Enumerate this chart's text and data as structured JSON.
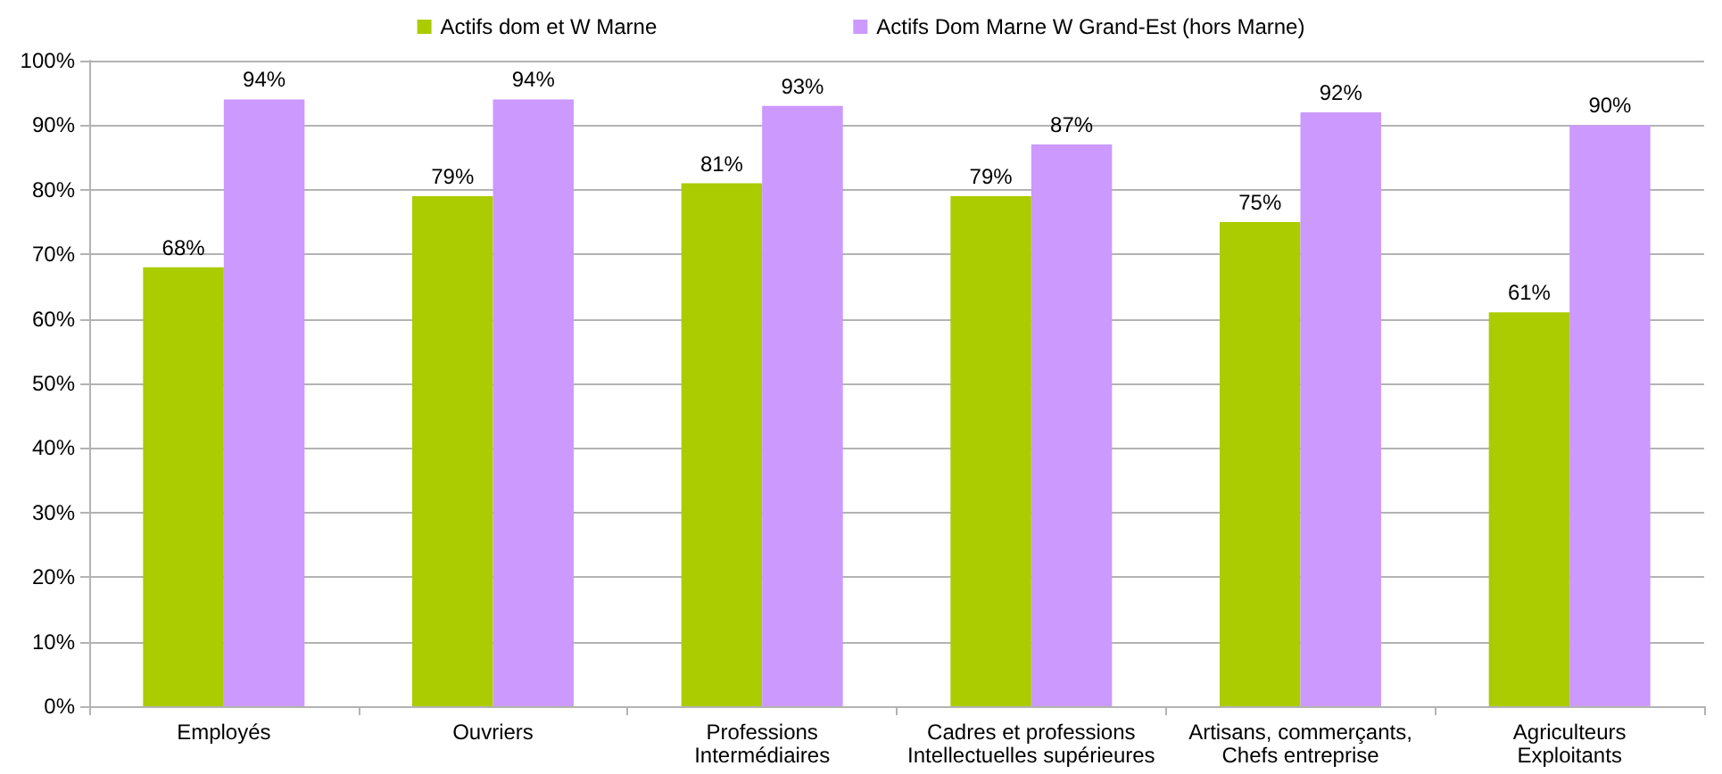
{
  "chart_data": {
    "type": "bar",
    "categories": [
      "Employés",
      "Ouvriers",
      "Professions\nIntermédiaires",
      "Cadres et professions\nIntellectuelles supérieures",
      "Artisans, commerçants,\nChefs entreprise",
      "Agriculteurs\nExploitants"
    ],
    "series": [
      {
        "name": "Actifs dom et W Marne",
        "color": "#aacc00",
        "values": [
          68,
          79,
          81,
          79,
          75,
          61
        ],
        "value_labels": [
          "68%",
          "79%",
          "81%",
          "79%",
          "75%",
          "61%"
        ]
      },
      {
        "name": "Actifs Dom Marne W Grand-Est (hors Marne)",
        "color": "#cc99ff",
        "values": [
          94,
          94,
          93,
          87,
          92,
          90
        ],
        "value_labels": [
          "94%",
          "94%",
          "93%",
          "87%",
          "92%",
          "90%"
        ]
      }
    ],
    "ylim": [
      0,
      100
    ],
    "yticks": [
      {
        "value": 0,
        "label": "0%"
      },
      {
        "value": 10,
        "label": "10%"
      },
      {
        "value": 20,
        "label": "20%"
      },
      {
        "value": 30,
        "label": "30%"
      },
      {
        "value": 40,
        "label": "40%"
      },
      {
        "value": 50,
        "label": "50%"
      },
      {
        "value": 60,
        "label": "60%"
      },
      {
        "value": 70,
        "label": "70%"
      },
      {
        "value": 80,
        "label": "80%"
      },
      {
        "value": 90,
        "label": "90%"
      },
      {
        "value": 100,
        "label": "100%"
      }
    ],
    "grid": "y",
    "legend": "top"
  }
}
